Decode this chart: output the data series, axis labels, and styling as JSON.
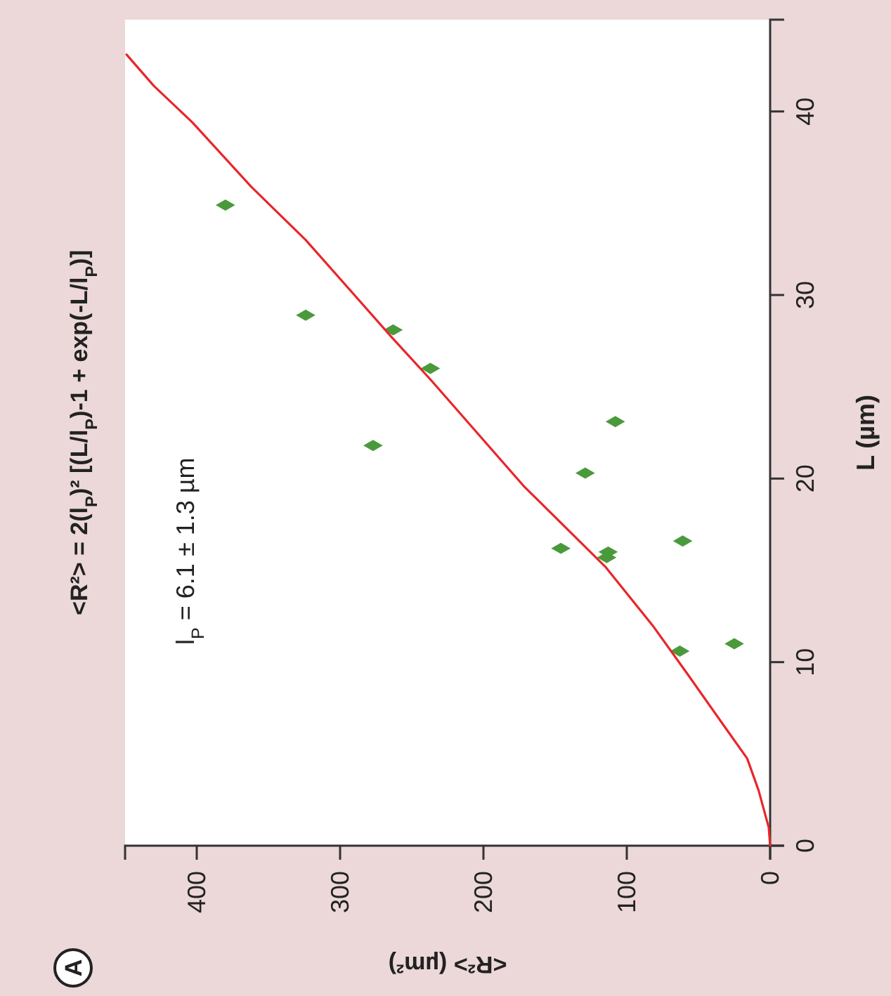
{
  "chart_data": {
    "type": "scatter",
    "title": "<R²> = 2(l$_{P}$)² [(L/l$_{P}$)-1 + exp(-L/l$_{P}$)]",
    "xlabel": "<R²> (µm²)",
    "ylabel": "L (µm)",
    "annotations": [
      "l$_{P}$ = 6.1 ± 1.3 µm",
      "A"
    ],
    "xlim": [
      450,
      0
    ],
    "xticks": [
      400,
      300,
      200,
      100,
      0
    ],
    "ylim": [
      0,
      45
    ],
    "yticks": [
      0,
      10,
      20,
      30,
      40
    ],
    "grid": false,
    "marker": "diamond",
    "series": [
      {
        "color": "#4a9a3c",
        "x": [
          380,
          324,
          263,
          237,
          277,
          108,
          129,
          146,
          113,
          114,
          61,
          63,
          25
        ],
        "values": [
          34.9,
          28.9,
          28.1,
          26.0,
          21.8,
          23.1,
          20.3,
          16.2,
          16.0,
          15.7,
          16.6,
          10.6,
          11.0
        ]
      },
      {
        "type": "line",
        "color": "#e8262a",
        "marker": "none",
        "line_style": "solid",
        "x": [
          0,
          1,
          8,
          16,
          31,
          59,
          82,
          115,
          172,
          237,
          264,
          324,
          362,
          403,
          430,
          449
        ],
        "values": [
          0,
          1,
          3,
          4.75,
          6.4,
          9.5,
          12,
          15.2,
          19.6,
          25.4,
          27.7,
          33,
          35.9,
          39.4,
          41.4,
          43.1
        ]
      }
    ]
  }
}
